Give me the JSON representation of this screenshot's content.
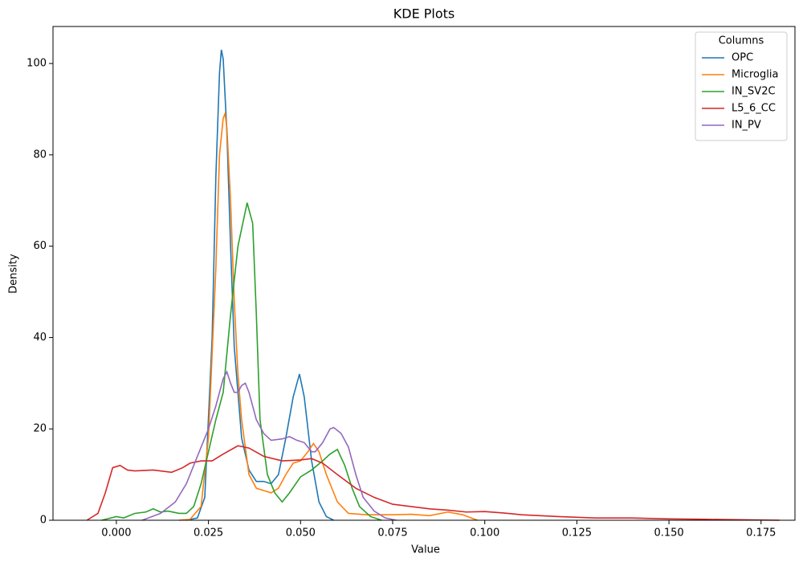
{
  "chart_data": {
    "type": "line",
    "title": "KDE Plots",
    "xlabel": "Value",
    "ylabel": "Density",
    "legend_title": "Columns",
    "legend": "upper right",
    "grid": false,
    "xlim": [
      -0.0172,
      0.1842
    ],
    "ylim": [
      0,
      108.1
    ],
    "xticks": [
      {
        "value": 0,
        "label": "0.000"
      },
      0.025,
      {
        "value": 0.05,
        "label": "0.050"
      },
      0.075,
      {
        "value": 0.1,
        "label": "0.100"
      },
      0.125,
      {
        "value": 0.15,
        "label": "0.150"
      },
      0.175
    ],
    "yticks": [
      0,
      20,
      40,
      60,
      80,
      100
    ],
    "series": [
      {
        "name": "OPC",
        "color": "#1f77b4",
        "x": [
          0.019,
          0.022,
          0.024,
          0.026,
          0.027,
          0.028,
          0.0285,
          0.029,
          0.03,
          0.031,
          0.032,
          0.034,
          0.036,
          0.038,
          0.04,
          0.042,
          0.044,
          0.046,
          0.048,
          0.0497,
          0.051,
          0.053,
          0.055,
          0.057,
          0.059
        ],
        "values": [
          0,
          0.5,
          5,
          40,
          75,
          98,
          103,
          101,
          85,
          60,
          38,
          18,
          11,
          8.5,
          8.5,
          8,
          10,
          18,
          27,
          32,
          27,
          13,
          4,
          0.8,
          0
        ]
      },
      {
        "name": "Microglia",
        "color": "#ff7f0e",
        "x": [
          0.017,
          0.02,
          0.023,
          0.025,
          0.027,
          0.028,
          0.029,
          0.0295,
          0.03,
          0.031,
          0.032,
          0.033,
          0.034,
          0.036,
          0.038,
          0.04,
          0.042,
          0.044,
          0.046,
          0.048,
          0.05,
          0.052,
          0.0535,
          0.055,
          0.057,
          0.06,
          0.063,
          0.068,
          0.075,
          0.08,
          0.085,
          0.09,
          0.094,
          0.098
        ],
        "values": [
          0,
          0.2,
          3,
          18,
          55,
          80,
          88,
          89,
          86,
          70,
          48,
          32,
          22,
          10,
          7,
          6.5,
          6,
          7,
          10,
          12.5,
          13,
          15,
          16.8,
          15,
          10,
          4,
          1.5,
          1.2,
          1.2,
          1.3,
          1,
          1.8,
          1.2,
          0
        ]
      },
      {
        "name": "IN_SV2C",
        "color": "#2ca02c",
        "x": [
          -0.004,
          0.0,
          0.002,
          0.005,
          0.008,
          0.01,
          0.012,
          0.014,
          0.017,
          0.019,
          0.021,
          0.023,
          0.025,
          0.027,
          0.029,
          0.031,
          0.033,
          0.0355,
          0.037,
          0.038,
          0.039,
          0.041,
          0.043,
          0.045,
          0.047,
          0.05,
          0.053,
          0.056,
          0.058,
          0.06,
          0.062,
          0.064,
          0.066,
          0.069,
          0.072
        ],
        "values": [
          0,
          0.8,
          0.5,
          1.5,
          1.8,
          2.5,
          1.8,
          2,
          1.5,
          1.5,
          3,
          8,
          15,
          22,
          28,
          45,
          60,
          69.5,
          65,
          45,
          22,
          10,
          6,
          4,
          6,
          9.5,
          11,
          13,
          14.5,
          15.5,
          12,
          7,
          3,
          0.8,
          0
        ]
      },
      {
        "name": "L5_6_CC",
        "color": "#d62728",
        "x": [
          -0.008,
          -0.005,
          -0.003,
          -0.001,
          0.001,
          0.003,
          0.005,
          0.01,
          0.015,
          0.018,
          0.02,
          0.023,
          0.026,
          0.029,
          0.033,
          0.036,
          0.04,
          0.045,
          0.05,
          0.053,
          0.056,
          0.06,
          0.065,
          0.07,
          0.075,
          0.08,
          0.085,
          0.09,
          0.095,
          0.1,
          0.105,
          0.11,
          0.12,
          0.13,
          0.14,
          0.15,
          0.16,
          0.17,
          0.18
        ],
        "values": [
          0,
          1.5,
          6,
          11.5,
          12,
          11,
          10.8,
          11,
          10.5,
          11.5,
          12.5,
          13,
          13,
          14.5,
          16.3,
          15.8,
          14,
          13,
          13.2,
          13.5,
          12.5,
          10,
          7,
          5,
          3.5,
          3,
          2.5,
          2.2,
          1.8,
          1.9,
          1.6,
          1.2,
          0.8,
          0.5,
          0.5,
          0.3,
          0.2,
          0.1,
          0
        ]
      },
      {
        "name": "IN_PV",
        "color": "#9467bd",
        "x": [
          0.007,
          0.012,
          0.016,
          0.019,
          0.022,
          0.025,
          0.027,
          0.029,
          0.03,
          0.031,
          0.032,
          0.033,
          0.034,
          0.035,
          0.036,
          0.038,
          0.04,
          0.042,
          0.045,
          0.047,
          0.049,
          0.051,
          0.053,
          0.054,
          0.056,
          0.058,
          0.059,
          0.061,
          0.063,
          0.065,
          0.067,
          0.07,
          0.073,
          0.076
        ],
        "values": [
          0,
          1.5,
          4,
          8,
          14,
          20,
          25,
          31,
          32.5,
          30,
          28,
          28,
          29.5,
          30,
          28,
          22,
          19,
          17.5,
          17.8,
          18.3,
          17.5,
          17,
          15,
          15,
          17,
          20,
          20.3,
          19,
          16,
          10,
          5,
          2,
          0.5,
          0
        ]
      }
    ]
  }
}
